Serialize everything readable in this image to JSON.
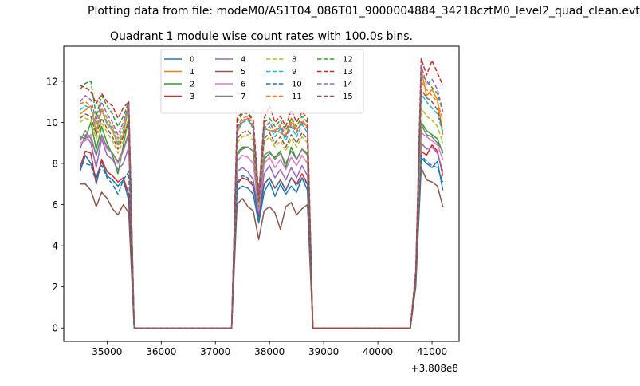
{
  "chart_data": {
    "type": "line",
    "suptitle": "Plotting data from file: modeM0/AS1T04_086T01_9000004884_34218cztM0_level2_quad_clean.evt",
    "title": "Quadrant 1 module wise count rates with 100.0s bins.",
    "xlabel": "",
    "ylabel": "",
    "x_offset_label": "+3.808e8",
    "xlim": [
      34200,
      41500
    ],
    "ylim": [
      -0.65,
      13.7
    ],
    "xticks": [
      35000,
      36000,
      37000,
      38000,
      39000,
      40000,
      41000
    ],
    "xtick_labels": [
      "35000",
      "36000",
      "37000",
      "38000",
      "39000",
      "40000",
      "41000"
    ],
    "yticks": [
      0,
      2,
      4,
      6,
      8,
      10,
      12
    ],
    "ytick_labels": [
      "0",
      "2",
      "4",
      "6",
      "8",
      "10",
      "12"
    ],
    "x": [
      34500,
      34600,
      34700,
      34800,
      34900,
      35000,
      35100,
      35200,
      35300,
      35400,
      35500,
      37300,
      37400,
      37500,
      37600,
      37700,
      37800,
      37900,
      38000,
      38100,
      38200,
      38300,
      38400,
      38500,
      38600,
      38700,
      38800,
      40600,
      40700,
      40800,
      40900,
      41000,
      41100,
      41200
    ],
    "series": [
      {
        "name": "0",
        "color": "#1f77b4",
        "dash": "solid",
        "values": [
          7.6,
          8.4,
          8.0,
          7.3,
          8.1,
          7.4,
          7.2,
          6.9,
          7.2,
          6.2,
          0,
          0,
          6.7,
          6.9,
          6.8,
          6.5,
          5.1,
          6.6,
          7.1,
          6.4,
          7.0,
          6.5,
          6.9,
          6.6,
          7.3,
          6.7,
          0,
          0,
          2.2,
          8.3,
          8.0,
          7.8,
          8.1,
          6.7
        ]
      },
      {
        "name": "1",
        "color": "#ff7f0e",
        "dash": "solid",
        "values": [
          10.4,
          10.6,
          10.8,
          9.5,
          10.6,
          9.9,
          9.6,
          8.9,
          9.4,
          10.8,
          0,
          0,
          9.5,
          10.0,
          10.2,
          9.7,
          6.0,
          9.7,
          9.6,
          9.6,
          9.5,
          9.3,
          10.2,
          9.6,
          10.0,
          9.8,
          0,
          0,
          2.5,
          12.6,
          11.3,
          11.6,
          11.1,
          9.4
        ]
      },
      {
        "name": "2",
        "color": "#2ca02c",
        "dash": "solid",
        "values": [
          9.3,
          9.2,
          10.0,
          8.7,
          9.8,
          9.0,
          8.4,
          7.5,
          8.9,
          10.2,
          0,
          0,
          8.5,
          8.8,
          8.8,
          8.6,
          5.8,
          8.2,
          8.5,
          8.3,
          8.6,
          7.8,
          8.8,
          8.2,
          8.7,
          8.5,
          0,
          0,
          2.4,
          10.0,
          9.6,
          9.4,
          9.2,
          8.5
        ]
      },
      {
        "name": "3",
        "color": "#d62728",
        "dash": "solid",
        "values": [
          7.8,
          8.6,
          8.5,
          7.0,
          8.2,
          7.6,
          7.4,
          7.1,
          7.3,
          6.5,
          0,
          0,
          7.0,
          7.3,
          7.2,
          6.9,
          5.4,
          7.0,
          7.3,
          6.8,
          7.2,
          6.7,
          7.3,
          7.0,
          7.5,
          7.0,
          0,
          0,
          2.3,
          8.6,
          8.4,
          8.9,
          8.6,
          7.4
        ]
      },
      {
        "name": "4",
        "color": "#9467bd",
        "dash": "solid",
        "values": [
          8.7,
          9.4,
          9.0,
          7.8,
          9.2,
          8.4,
          8.2,
          7.7,
          8.0,
          8.8,
          0,
          0,
          7.6,
          7.8,
          7.6,
          7.2,
          5.6,
          7.5,
          7.9,
          7.3,
          7.7,
          7.2,
          7.8,
          7.3,
          7.9,
          7.4,
          0,
          0,
          2.3,
          9.0,
          8.7,
          8.8,
          8.5,
          7.6
        ]
      },
      {
        "name": "5",
        "color": "#8c564b",
        "dash": "solid",
        "values": [
          7.0,
          7.0,
          6.7,
          5.9,
          6.6,
          6.3,
          5.8,
          5.5,
          6.0,
          5.6,
          0,
          0,
          6.0,
          6.3,
          5.9,
          5.7,
          4.3,
          5.7,
          5.9,
          5.6,
          4.8,
          5.9,
          6.1,
          5.5,
          5.8,
          6.0,
          0,
          0,
          2.0,
          7.8,
          7.2,
          7.1,
          6.9,
          5.9
        ]
      },
      {
        "name": "6",
        "color": "#e377c2",
        "dash": "solid",
        "values": [
          9.0,
          9.1,
          9.4,
          8.4,
          9.3,
          8.7,
          8.5,
          8.0,
          8.6,
          9.4,
          0,
          0,
          8.1,
          8.4,
          8.3,
          8.0,
          5.7,
          8.0,
          8.3,
          7.8,
          8.2,
          7.7,
          8.3,
          7.9,
          8.4,
          8.0,
          0,
          0,
          2.4,
          9.5,
          9.3,
          9.1,
          8.9,
          8.2
        ]
      },
      {
        "name": "7",
        "color": "#7f7f7f",
        "dash": "solid",
        "values": [
          9.1,
          9.6,
          9.2,
          8.4,
          9.4,
          8.8,
          8.5,
          8.1,
          8.7,
          9.5,
          0,
          0,
          8.4,
          8.7,
          8.8,
          8.6,
          5.9,
          8.4,
          8.6,
          8.2,
          8.5,
          8.0,
          8.6,
          8.2,
          8.7,
          8.4,
          0,
          0,
          2.4,
          9.9,
          9.4,
          9.3,
          9.0,
          8.6
        ]
      },
      {
        "name": "8",
        "color": "#bcbd22",
        "dash": "dashed",
        "values": [
          10.0,
          10.2,
          10.1,
          9.2,
          10.0,
          9.5,
          9.1,
          8.5,
          9.1,
          10.3,
          0,
          0,
          9.0,
          9.3,
          9.4,
          9.1,
          6.0,
          9.0,
          9.3,
          8.8,
          9.1,
          8.6,
          9.2,
          8.8,
          9.3,
          9.0,
          0,
          0,
          2.5,
          10.7,
          10.3,
          10.1,
          9.8,
          9.0
        ]
      },
      {
        "name": "9",
        "color": "#17becf",
        "dash": "dashed",
        "values": [
          10.6,
          10.8,
          10.7,
          9.7,
          10.6,
          10.0,
          9.7,
          9.0,
          9.6,
          10.8,
          0,
          0,
          9.6,
          10.0,
          10.1,
          9.7,
          6.2,
          9.6,
          9.8,
          9.3,
          9.7,
          9.1,
          9.8,
          9.3,
          9.9,
          9.5,
          0,
          0,
          2.6,
          11.4,
          11.0,
          10.7,
          10.4,
          9.5
        ]
      },
      {
        "name": "10",
        "color": "#1f77b4",
        "dash": "dashed",
        "values": [
          8.0,
          8.0,
          7.9,
          7.1,
          7.9,
          7.3,
          7.0,
          6.5,
          7.2,
          7.6,
          0,
          0,
          7.1,
          7.4,
          7.3,
          7.0,
          5.2,
          7.0,
          7.3,
          6.8,
          7.2,
          6.7,
          7.3,
          6.9,
          7.3,
          7.0,
          0,
          0,
          2.2,
          8.4,
          8.1,
          7.9,
          7.8,
          7.1
        ]
      },
      {
        "name": "11",
        "color": "#ff7f0e",
        "dash": "dashed",
        "values": [
          10.9,
          11.0,
          10.8,
          9.9,
          10.7,
          10.2,
          9.8,
          9.2,
          9.8,
          10.9,
          0,
          0,
          9.8,
          10.2,
          10.3,
          9.9,
          6.3,
          9.8,
          10.0,
          9.6,
          9.9,
          9.4,
          10.0,
          9.6,
          10.1,
          9.8,
          0,
          0,
          2.6,
          12.0,
          11.6,
          11.3,
          11.0,
          10.1
        ]
      },
      {
        "name": "12",
        "color": "#2ca02c",
        "dash": "dashed",
        "values": [
          11.6,
          11.9,
          12.0,
          10.3,
          11.3,
          10.8,
          10.4,
          9.8,
          10.3,
          11.0,
          0,
          0,
          10.0,
          10.4,
          10.5,
          10.1,
          6.4,
          10.0,
          10.2,
          9.8,
          10.1,
          9.6,
          10.2,
          9.8,
          10.3,
          10.0,
          0,
          0,
          2.7,
          12.4,
          12.0,
          11.7,
          11.4,
          10.5
        ]
      },
      {
        "name": "13",
        "color": "#d62728",
        "dash": "dashed",
        "values": [
          11.8,
          11.7,
          11.5,
          10.9,
          11.4,
          11.0,
          10.8,
          10.2,
          10.7,
          11.0,
          0,
          0,
          10.2,
          10.5,
          10.4,
          10.1,
          6.5,
          10.2,
          10.8,
          10.0,
          10.3,
          9.8,
          10.6,
          10.0,
          10.5,
          10.2,
          0,
          0,
          2.8,
          13.1,
          12.3,
          13.0,
          12.4,
          11.8
        ]
      },
      {
        "name": "14",
        "color": "#9467bd",
        "dash": "dashed",
        "values": [
          11.0,
          11.3,
          11.1,
          10.1,
          11.0,
          10.4,
          10.0,
          9.4,
          10.0,
          10.9,
          0,
          0,
          9.7,
          10.1,
          10.2,
          9.8,
          6.3,
          9.7,
          10.0,
          9.5,
          9.8,
          9.3,
          9.9,
          9.5,
          10.0,
          9.7,
          0,
          0,
          2.6,
          12.8,
          11.8,
          12.1,
          11.6,
          10.5
        ]
      },
      {
        "name": "15",
        "color": "#8c564b",
        "dash": "dashed",
        "values": [
          10.2,
          10.4,
          10.3,
          9.4,
          10.2,
          9.7,
          9.3,
          8.7,
          9.3,
          10.1,
          0,
          0,
          9.2,
          9.5,
          9.6,
          9.3,
          6.1,
          9.2,
          9.5,
          9.0,
          9.3,
          8.8,
          9.4,
          9.0,
          9.5,
          9.2,
          0,
          0,
          2.5,
          11.6,
          11.2,
          11.0,
          10.6,
          9.6
        ]
      }
    ],
    "legend": {
      "location": "upper center",
      "columns": 4
    }
  }
}
